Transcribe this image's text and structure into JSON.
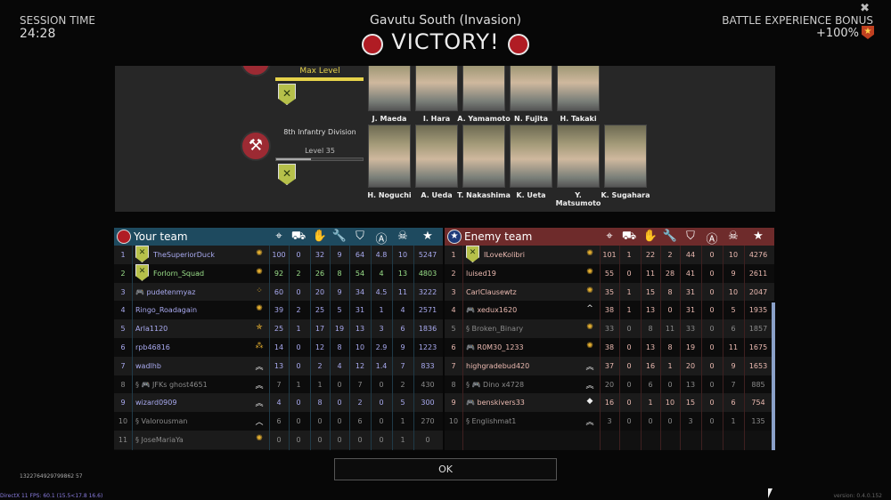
{
  "header": {
    "session_label": "SESSION TIME",
    "session_time": "24:28",
    "map_title": "Gavutu South (Invasion)",
    "result": "VICTORY!",
    "bonus_label": "BATTLE EXPERIENCE BONUS",
    "bonus_value": "+100%",
    "close_icon": "close-icon"
  },
  "squads": [
    {
      "level": "Max Level",
      "level_fill": 1.0,
      "members": [
        "J. Maeda",
        "I. Hara",
        "A. Yamamoto",
        "N. Fujita",
        "H. Takaki"
      ]
    },
    {
      "name": "8th Infantry Division",
      "level": "Level 35",
      "level_fill": 0.4,
      "members": [
        "H. Noguchi",
        "A. Ueda",
        "T. Nakashima",
        "K. Ueta",
        "Y. Matsumoto",
        "K. Sugahara"
      ]
    }
  ],
  "columns": [
    "target-icon",
    "artillery-icon",
    "hand-icon",
    "wrench-icon",
    "shield-a-icon",
    "circle-a-icon",
    "skull-icon",
    "star-icon"
  ],
  "colors": {
    "your_header": "#1e4a5f",
    "enemy_header": "#6e2b2b",
    "your_name": "#a9aaf0",
    "squad_name": "#9be08a",
    "enemy_name": "#eab9b0",
    "offline": "#8a8a8a"
  },
  "your_team": {
    "title": "Your team",
    "rows": [
      {
        "rank": "1",
        "name": "TheSuperiorDuck",
        "style": "normal",
        "badge": true,
        "icon": "gold-sun",
        "stats": [
          "100",
          "0",
          "32",
          "9",
          "64",
          "4.8",
          "10",
          "5247"
        ]
      },
      {
        "rank": "2",
        "name": "Forlorn_Squad",
        "style": "squad",
        "badge": true,
        "icon": "gold-sun",
        "stats": [
          "92",
          "2",
          "26",
          "8",
          "54",
          "4",
          "13",
          "4803"
        ]
      },
      {
        "rank": "3",
        "name": "🎮 pudetenmyaz",
        "style": "normal",
        "icon": "gold-quad",
        "stats": [
          "60",
          "0",
          "20",
          "9",
          "34",
          "4.5",
          "11",
          "3222"
        ]
      },
      {
        "rank": "4",
        "name": "Ringo_Roadagain",
        "style": "normal",
        "icon": "gold-sun",
        "stats": [
          "39",
          "2",
          "25",
          "5",
          "31",
          "1",
          "4",
          "2571"
        ]
      },
      {
        "rank": "5",
        "name": "Arla1120",
        "style": "normal",
        "icon": "gold-star",
        "stats": [
          "25",
          "1",
          "17",
          "19",
          "13",
          "3",
          "6",
          "1836"
        ]
      },
      {
        "rank": "6",
        "name": "rpb46816",
        "style": "normal",
        "icon": "gold-tri",
        "stats": [
          "14",
          "0",
          "12",
          "8",
          "10",
          "2.9",
          "9",
          "1223"
        ]
      },
      {
        "rank": "7",
        "name": "wadlhb",
        "style": "normal",
        "icon": "chevrons",
        "stats": [
          "13",
          "0",
          "2",
          "4",
          "12",
          "1.4",
          "7",
          "833"
        ]
      },
      {
        "rank": "8",
        "name": "§ 🎮 JFKs ghost4651",
        "style": "offline",
        "icon": "chevrons",
        "stats": [
          "7",
          "1",
          "1",
          "0",
          "7",
          "0",
          "2",
          "430"
        ]
      },
      {
        "rank": "9",
        "name": "wizard0909",
        "style": "normal",
        "icon": "chevrons",
        "stats": [
          "4",
          "0",
          "8",
          "0",
          "2",
          "0",
          "5",
          "300"
        ]
      },
      {
        "rank": "10",
        "name": "§ Valorousman",
        "style": "offline",
        "icon": "chevron",
        "stats": [
          "6",
          "0",
          "0",
          "0",
          "6",
          "0",
          "1",
          "270"
        ]
      },
      {
        "rank": "11",
        "name": "§ JoseMariaYa",
        "style": "offline",
        "icon": "gold-sun",
        "stats": [
          "0",
          "0",
          "0",
          "0",
          "0",
          "0",
          "1",
          "0"
        ]
      }
    ]
  },
  "enemy_team": {
    "title": "Enemy team",
    "rows": [
      {
        "rank": "1",
        "name": "ILoveKolibri",
        "style": "normal",
        "badge": true,
        "icon": "gold-sun",
        "stats": [
          "101",
          "1",
          "22",
          "2",
          "44",
          "0",
          "10",
          "4276"
        ]
      },
      {
        "rank": "2",
        "name": "luised19",
        "style": "normal",
        "icon": "gold-sun",
        "stats": [
          "55",
          "0",
          "11",
          "28",
          "41",
          "0",
          "9",
          "2611"
        ]
      },
      {
        "rank": "3",
        "name": "CarlClausewtz",
        "style": "normal",
        "icon": "gold-sun",
        "stats": [
          "35",
          "1",
          "15",
          "8",
          "31",
          "0",
          "10",
          "2047"
        ]
      },
      {
        "rank": "4",
        "name": "🎮 xedux1620",
        "style": "normal",
        "icon": "caret",
        "stats": [
          "38",
          "1",
          "13",
          "0",
          "31",
          "0",
          "5",
          "1935"
        ]
      },
      {
        "rank": "5",
        "name": "§ Broken_Binary",
        "style": "offline",
        "icon": "gold-sun",
        "stats": [
          "33",
          "0",
          "8",
          "11",
          "33",
          "0",
          "6",
          "1857"
        ]
      },
      {
        "rank": "6",
        "name": "🎮 R0M30_1233",
        "style": "normal",
        "icon": "gold-sun",
        "stats": [
          "38",
          "0",
          "13",
          "8",
          "19",
          "0",
          "11",
          "1675"
        ]
      },
      {
        "rank": "7",
        "name": "highgradebud420",
        "style": "normal",
        "icon": "chevrons",
        "stats": [
          "37",
          "0",
          "16",
          "1",
          "20",
          "0",
          "9",
          "1653"
        ]
      },
      {
        "rank": "8",
        "name": "§ 🎮 Dino x4728",
        "style": "offline",
        "icon": "chevrons",
        "stats": [
          "20",
          "0",
          "6",
          "0",
          "13",
          "0",
          "7",
          "885"
        ]
      },
      {
        "rank": "9",
        "name": "🎮 benskivers33",
        "style": "normal",
        "icon": "diamond",
        "stats": [
          "16",
          "0",
          "1",
          "10",
          "15",
          "0",
          "6",
          "754"
        ]
      },
      {
        "rank": "10",
        "name": "§ Englishmat1",
        "style": "offline",
        "icon": "chevrons",
        "stats": [
          "3",
          "0",
          "0",
          "0",
          "3",
          "0",
          "1",
          "135"
        ]
      }
    ]
  },
  "footer": {
    "ok": "OK",
    "session_id": "1322764929799862 57",
    "fps": "DirectX 11 FPS: 60.1 (15.5<17.8 16.6)",
    "version": "version: 0.4.0.152"
  }
}
